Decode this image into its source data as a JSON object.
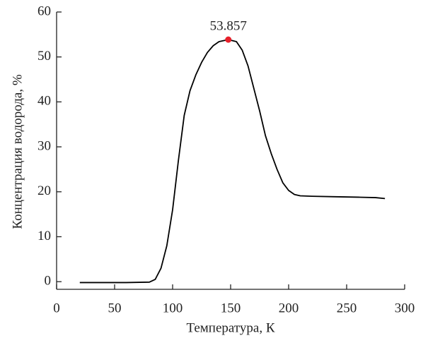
{
  "chart_data": {
    "type": "line",
    "x_label": "Температура, К",
    "y_label": "Концентрация водорода, %",
    "x": [
      20,
      40,
      60,
      80,
      85,
      90,
      95,
      100,
      105,
      110,
      115,
      120,
      125,
      130,
      135,
      140,
      148,
      155,
      160,
      165,
      170,
      175,
      180,
      185,
      190,
      195,
      200,
      205,
      210,
      220,
      240,
      260,
      275,
      283
    ],
    "values": [
      -0.2,
      -0.2,
      -0.2,
      -0.1,
      0.5,
      3,
      8,
      16,
      27,
      37,
      42.5,
      46,
      48.8,
      51,
      52.5,
      53.4,
      53.857,
      53.4,
      51.5,
      48,
      43,
      38,
      32.5,
      28.5,
      25,
      22,
      20.3,
      19.4,
      19.1,
      19,
      18.9,
      18.8,
      18.7,
      18.5
    ],
    "color": "#000000",
    "peak": {
      "x": 148,
      "y": 53.857,
      "color": "#e8202a"
    },
    "xlim": [
      0,
      300
    ],
    "ylim": [
      -1.7,
      60
    ],
    "xticks": [
      0,
      50,
      100,
      150,
      200,
      250,
      300
    ],
    "yticks": [
      0,
      10,
      20,
      30,
      40,
      50,
      60
    ]
  }
}
